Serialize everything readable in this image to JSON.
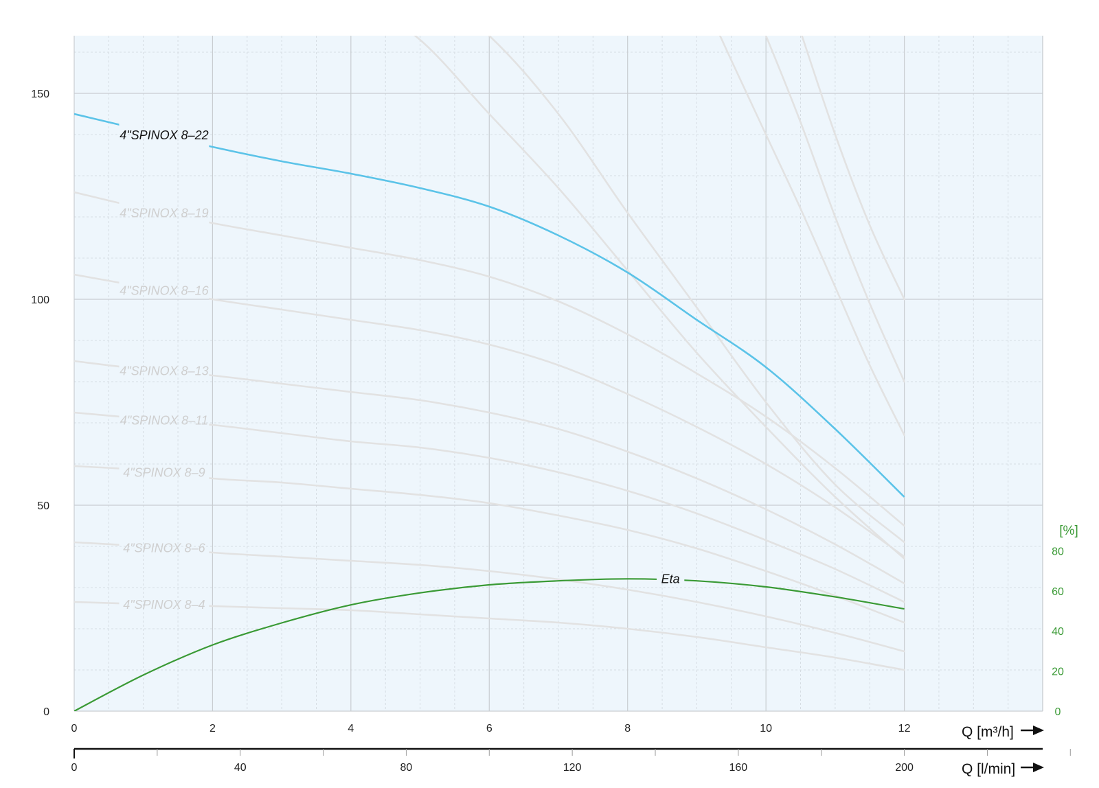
{
  "chart_data": {
    "type": "line",
    "title": "",
    "xlabel": "Q [m³/h]",
    "xlabel2": "Q [l/min]",
    "ylabel": "",
    "y2label": "[%]",
    "xlim": [
      0,
      14
    ],
    "ylim": [
      0,
      164
    ],
    "y2lim": [
      0,
      337
    ],
    "grid": true,
    "x_ticks": [
      0,
      2,
      4,
      6,
      8,
      10,
      12
    ],
    "x_tick_labels": [
      "0",
      "2",
      "4",
      "6",
      "8",
      "10",
      "12"
    ],
    "x2_ticks": [
      0,
      40,
      80,
      120,
      160,
      200
    ],
    "x2_tick_labels": [
      "0",
      "40",
      "80",
      "120",
      "160",
      "200"
    ],
    "y_ticks": [
      0,
      50,
      100,
      150
    ],
    "y_tick_labels": [
      "0",
      "50",
      "100",
      "150"
    ],
    "y2_ticks": [
      0,
      20,
      40,
      60,
      80
    ],
    "y2_tick_labels": [
      "0",
      "20",
      "40",
      "60",
      "80"
    ],
    "colors": {
      "highlight": "#5bc3e8",
      "eta": "#3a9a35",
      "background_curves": "#e2e2e2",
      "plot_bg": "#eef6fc",
      "grid_major": "#c9cdd1",
      "grid_minor": "#d6dde3"
    },
    "series": [
      {
        "name": "4\"SPINOX 8–22",
        "highlight": true,
        "x": [
          0,
          1,
          2,
          3,
          4,
          5,
          6,
          7,
          8,
          9,
          10,
          11,
          12
        ],
        "y": [
          145,
          141,
          137,
          133.5,
          130.5,
          127,
          122.5,
          115.5,
          106.5,
          95,
          83.5,
          68.5,
          52
        ]
      },
      {
        "name": "4\"SPINOX 8–19",
        "x": [
          0,
          1,
          2,
          3,
          4,
          5,
          6,
          7,
          8,
          9,
          10,
          11,
          12
        ],
        "y": [
          126,
          122,
          118.5,
          115.5,
          112.5,
          109.5,
          105.5,
          99.5,
          91.5,
          82,
          71.5,
          59,
          45
        ]
      },
      {
        "name": "4\"SPINOX 8–16",
        "x": [
          0,
          1,
          2,
          3,
          4,
          5,
          6,
          7,
          8,
          9,
          10,
          11,
          12
        ],
        "y": [
          106,
          103,
          100,
          97.5,
          95,
          92.5,
          89,
          84,
          77,
          69,
          60,
          49.5,
          37.5
        ]
      },
      {
        "name": "4\"SPINOX 8–13",
        "x": [
          0,
          1,
          2,
          3,
          4,
          5,
          6,
          7,
          8,
          9,
          10,
          11,
          12
        ],
        "y": [
          85,
          83,
          81.5,
          79.5,
          77.5,
          75.5,
          72.5,
          68.5,
          63,
          56.5,
          49,
          40.5,
          31
        ]
      },
      {
        "name": "4\"SPINOX 8–11",
        "x": [
          0,
          1,
          2,
          3,
          4,
          5,
          6,
          7,
          8,
          9,
          10,
          11,
          12
        ],
        "y": [
          72.5,
          71,
          69.5,
          67.5,
          65.5,
          64,
          61.5,
          58,
          53.5,
          48,
          41.5,
          34.5,
          26.5
        ]
      },
      {
        "name": "4\"SPINOX 8–9",
        "x": [
          0,
          1,
          2,
          3,
          4,
          5,
          6,
          7,
          8,
          9,
          10,
          11,
          12
        ],
        "y": [
          59.5,
          58.5,
          56.5,
          55.5,
          54,
          52.5,
          50.5,
          47.5,
          44,
          39.5,
          34,
          28,
          21.5
        ]
      },
      {
        "name": "4\"SPINOX 8–6",
        "x": [
          0,
          1,
          2,
          3,
          4,
          5,
          6,
          7,
          8,
          9,
          10,
          11,
          12
        ],
        "y": [
          41,
          40,
          38.5,
          37.5,
          36.5,
          35.5,
          34,
          32,
          29.5,
          26.5,
          23,
          19,
          14.5
        ]
      },
      {
        "name": "4\"SPINOX 8–4",
        "x": [
          0,
          1,
          2,
          3,
          4,
          5,
          6,
          7,
          8,
          9,
          10,
          11,
          12
        ],
        "y": [
          26.5,
          26,
          25.5,
          25,
          24.5,
          23.5,
          22.5,
          21.5,
          20,
          18,
          15.5,
          13,
          10
        ]
      },
      {
        "name": "",
        "x": [
          3.5,
          4,
          5,
          6,
          7,
          8,
          9,
          10,
          11,
          12
        ],
        "y": [
          180,
          174,
          163,
          145,
          127,
          107,
          87,
          69,
          52,
          37
        ]
      },
      {
        "name": "",
        "x": [
          4.8,
          6,
          7,
          8,
          9,
          10,
          11,
          12
        ],
        "y": [
          180,
          164,
          145,
          121,
          98,
          75,
          55,
          41
        ]
      },
      {
        "name": "",
        "x": [
          8.9,
          9.5,
          10,
          10.5,
          11,
          11.5,
          12
        ],
        "y": [
          180,
          158,
          140,
          122,
          103,
          84,
          67
        ]
      },
      {
        "name": "",
        "x": [
          9.6,
          10,
          10.5,
          11,
          11.5,
          12
        ],
        "y": [
          180,
          164,
          143,
          120,
          99,
          80
        ]
      },
      {
        "name": "",
        "x": [
          10.2,
          10.5,
          11,
          11.5,
          12
        ],
        "y": [
          180,
          165,
          140,
          118,
          100
        ]
      }
    ],
    "eta": {
      "name": "Eta",
      "x": [
        0,
        1,
        2,
        3,
        4,
        5,
        6,
        7,
        8,
        9,
        10,
        11,
        12
      ],
      "y": [
        0,
        18,
        33,
        44,
        53,
        59,
        63,
        65,
        66,
        65,
        62,
        57,
        51
      ]
    },
    "labels": [
      {
        "text": "4\"SPINOX 8–22",
        "series": 0
      },
      {
        "text": "4\"SPINOX 8–19",
        "series": 1
      },
      {
        "text": "4\"SPINOX 8–16",
        "series": 2
      },
      {
        "text": "4\"SPINOX 8–13",
        "series": 3
      },
      {
        "text": "4\"SPINOX 8–11",
        "series": 4
      },
      {
        "text": "4\"SPINOX 8–9",
        "series": 5
      },
      {
        "text": "4\"SPINOX 8–6",
        "series": 6
      },
      {
        "text": "4\"SPINOX 8–4",
        "series": 7
      }
    ],
    "eta_label": "Eta"
  }
}
